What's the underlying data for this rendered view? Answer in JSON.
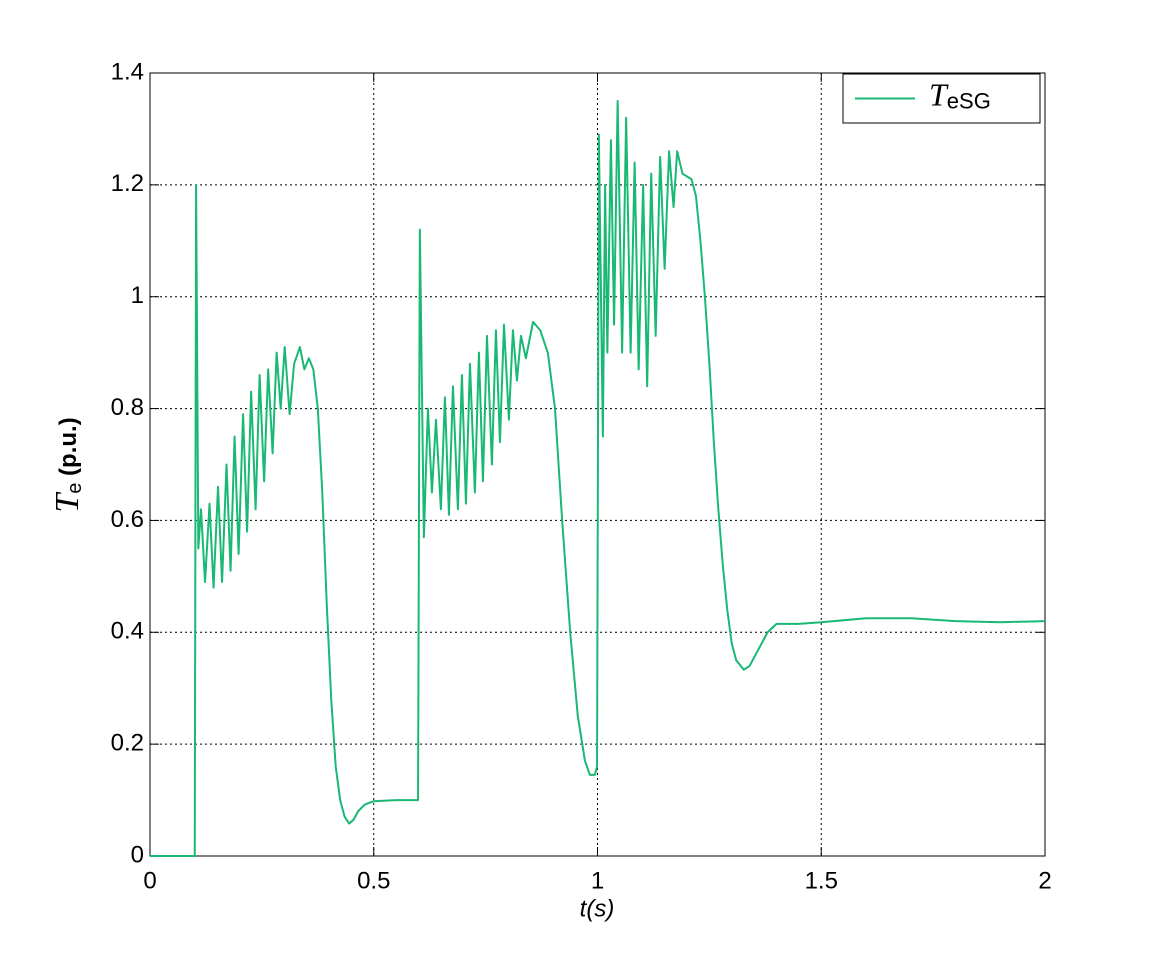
{
  "chart_data": {
    "type": "line",
    "xlabel": "t(s)",
    "ylabel": "Te (p.u.)",
    "xlim": [
      0,
      2
    ],
    "xticks": [
      0,
      0.5,
      1,
      1.5,
      2
    ],
    "ylim": [
      0,
      1.4
    ],
    "yticks": [
      0,
      0.2,
      0.4,
      0.6,
      0.8,
      1,
      1.2,
      1.4
    ],
    "grid": true,
    "legend": "upper right",
    "x": [
      0,
      0.1,
      0.103,
      0.108,
      0.114,
      0.123,
      0.133,
      0.142,
      0.152,
      0.161,
      0.171,
      0.18,
      0.189,
      0.198,
      0.208,
      0.217,
      0.226,
      0.236,
      0.245,
      0.255,
      0.264,
      0.274,
      0.283,
      0.292,
      0.301,
      0.312,
      0.322,
      0.335,
      0.345,
      0.355,
      0.365,
      0.375,
      0.385,
      0.395,
      0.405,
      0.415,
      0.425,
      0.435,
      0.445,
      0.455,
      0.465,
      0.48,
      0.5,
      0.55,
      0.599,
      0.603,
      0.612,
      0.621,
      0.63,
      0.639,
      0.65,
      0.659,
      0.668,
      0.677,
      0.688,
      0.697,
      0.706,
      0.715,
      0.726,
      0.735,
      0.744,
      0.753,
      0.764,
      0.773,
      0.782,
      0.791,
      0.802,
      0.811,
      0.82,
      0.829,
      0.84,
      0.856,
      0.872,
      0.889,
      0.905,
      0.921,
      0.939,
      0.956,
      0.972,
      0.983,
      0.994,
      0.999,
      1.003,
      1.012,
      1.017,
      1.022,
      1.03,
      1.037,
      1.045,
      1.055,
      1.064,
      1.074,
      1.083,
      1.092,
      1.102,
      1.111,
      1.12,
      1.13,
      1.14,
      1.15,
      1.16,
      1.17,
      1.178,
      1.19,
      1.2,
      1.21,
      1.22,
      1.23,
      1.24,
      1.25,
      1.26,
      1.27,
      1.28,
      1.29,
      1.3,
      1.31,
      1.327,
      1.34,
      1.36,
      1.38,
      1.4,
      1.45,
      1.5,
      1.6,
      1.7,
      1.8,
      1.9,
      2
    ],
    "series": [
      {
        "name": "TeSG",
        "color": "#19b874",
        "values": [
          0,
          0,
          1.2,
          0.55,
          0.62,
          0.49,
          0.63,
          0.48,
          0.66,
          0.49,
          0.7,
          0.51,
          0.75,
          0.54,
          0.79,
          0.58,
          0.83,
          0.62,
          0.86,
          0.67,
          0.87,
          0.72,
          0.9,
          0.8,
          0.91,
          0.79,
          0.88,
          0.91,
          0.87,
          0.89,
          0.87,
          0.8,
          0.65,
          0.45,
          0.28,
          0.16,
          0.1,
          0.07,
          0.058,
          0.065,
          0.08,
          0.092,
          0.098,
          0.1,
          0.1,
          1.12,
          0.57,
          0.8,
          0.65,
          0.78,
          0.62,
          0.82,
          0.61,
          0.84,
          0.62,
          0.86,
          0.63,
          0.88,
          0.65,
          0.9,
          0.67,
          0.93,
          0.7,
          0.94,
          0.74,
          0.95,
          0.78,
          0.94,
          0.85,
          0.93,
          0.89,
          0.955,
          0.94,
          0.9,
          0.8,
          0.6,
          0.4,
          0.25,
          0.17,
          0.145,
          0.145,
          0.16,
          1.29,
          0.75,
          1.2,
          0.9,
          1.28,
          0.95,
          1.35,
          0.9,
          1.32,
          0.9,
          1.24,
          0.87,
          1.2,
          0.84,
          1.22,
          0.93,
          1.25,
          1.05,
          1.26,
          1.16,
          1.26,
          1.22,
          1.215,
          1.21,
          1.18,
          1.1,
          1.0,
          0.88,
          0.74,
          0.62,
          0.52,
          0.44,
          0.38,
          0.35,
          0.333,
          0.34,
          0.37,
          0.4,
          0.415,
          0.415,
          0.418,
          0.425,
          0.425,
          0.42,
          0.418,
          0.42
        ]
      }
    ]
  }
}
